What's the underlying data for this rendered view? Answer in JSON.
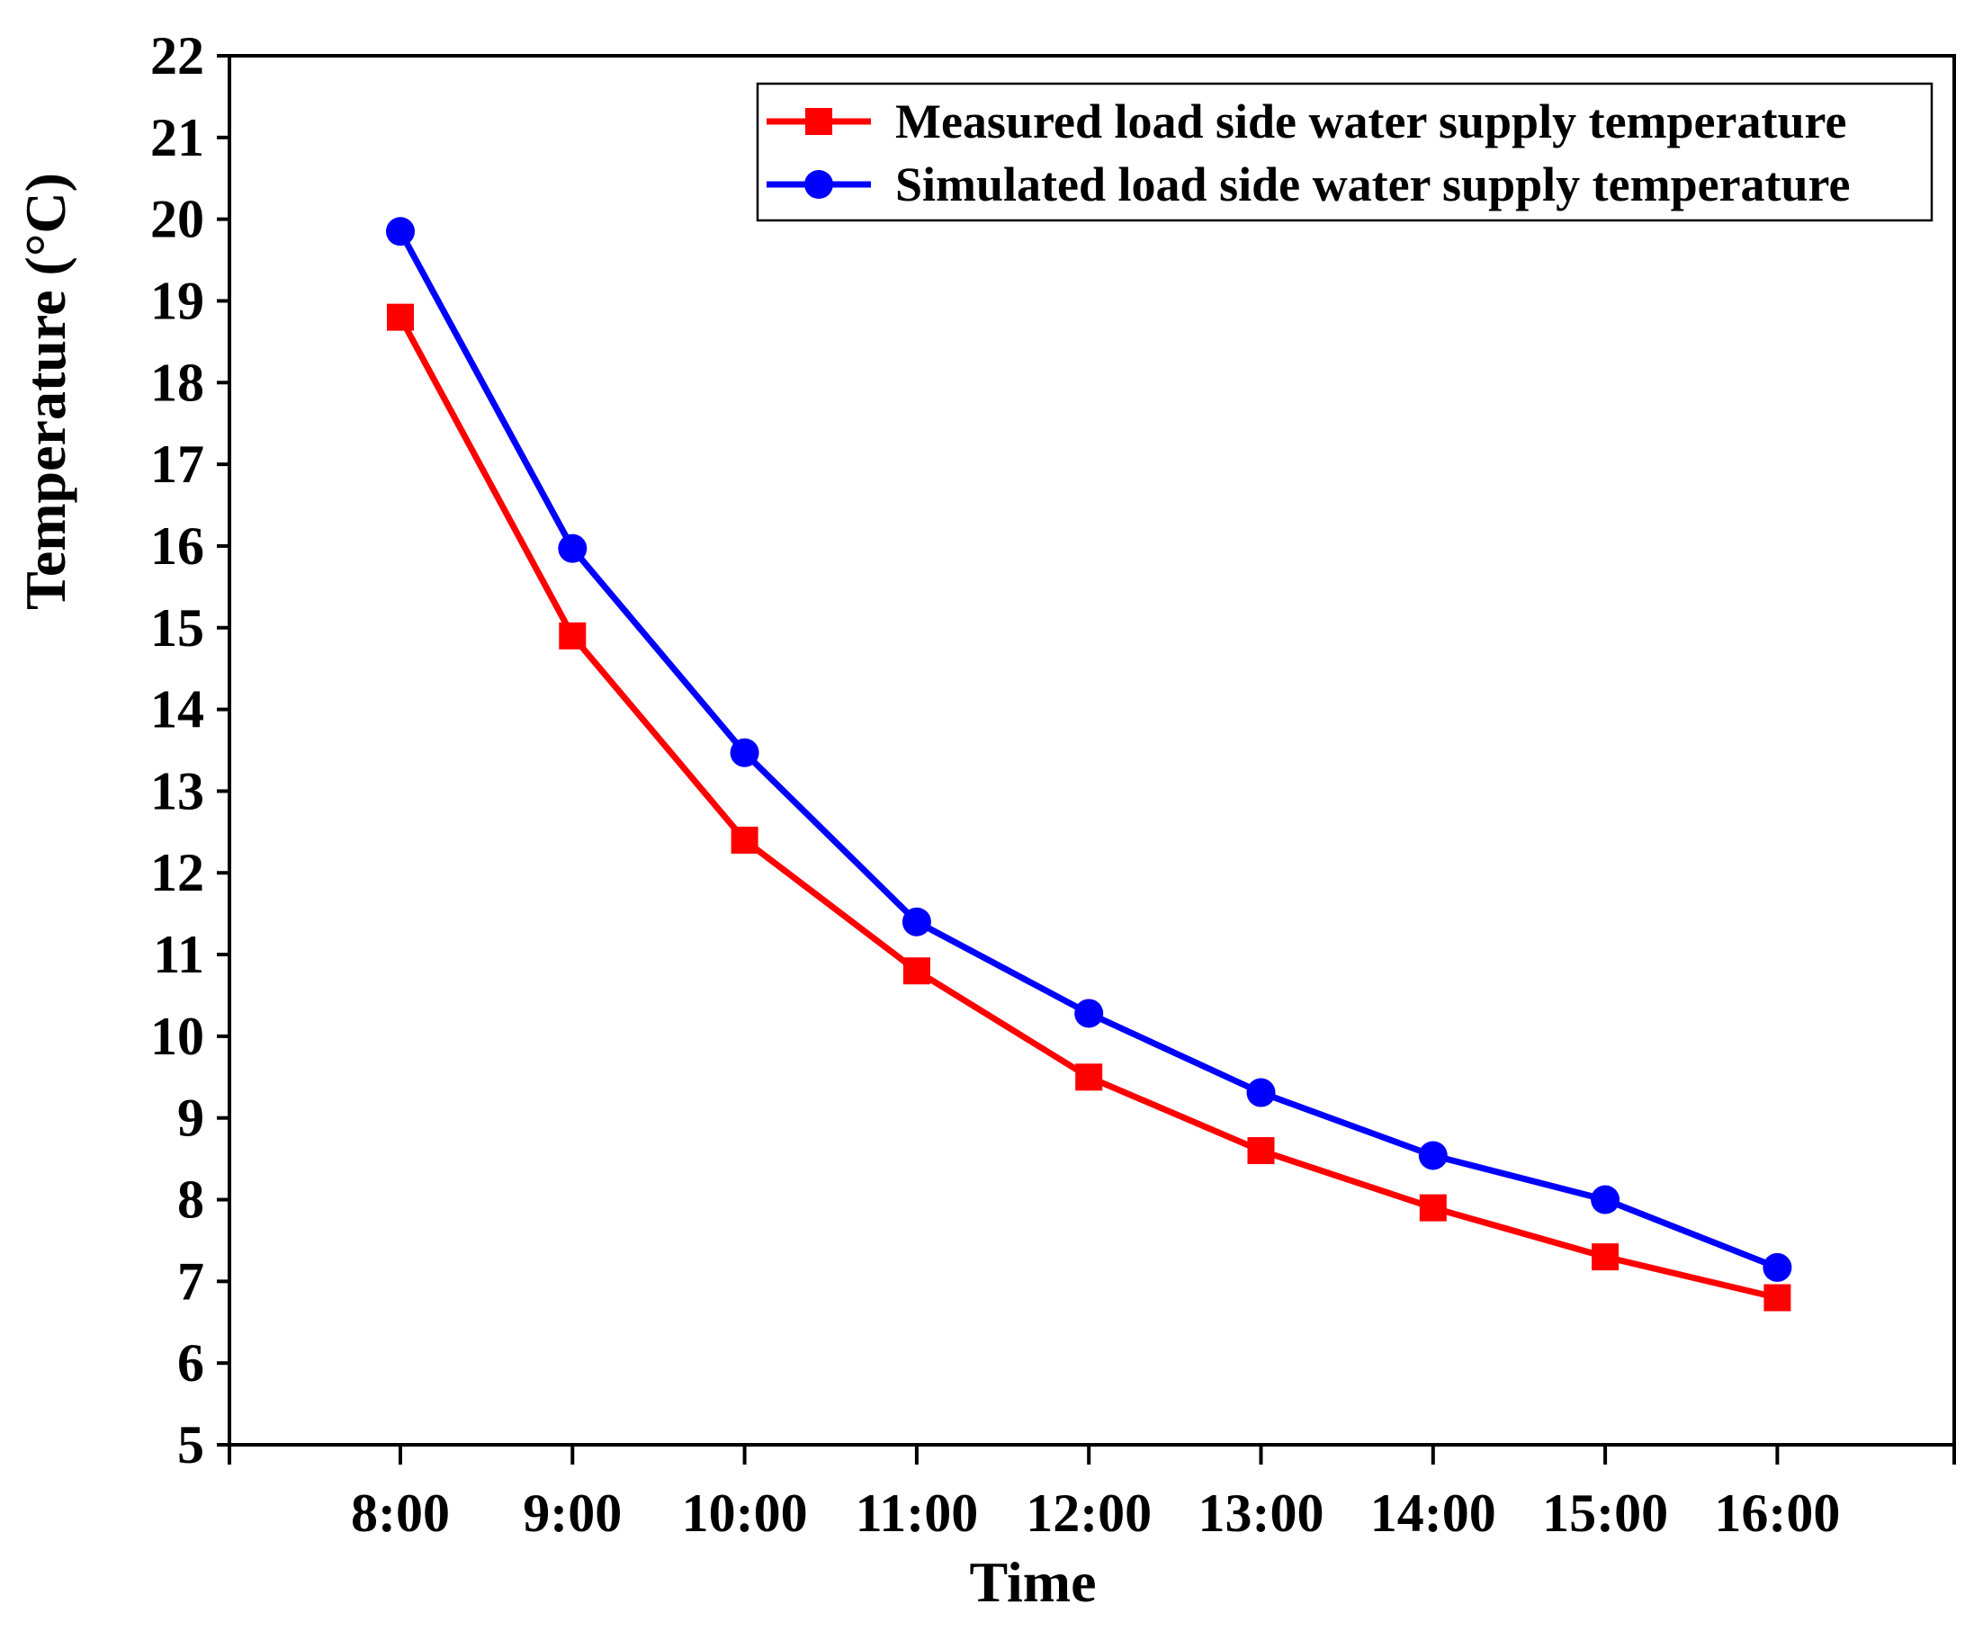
{
  "chart_data": {
    "type": "line",
    "title": "",
    "xlabel": "Time",
    "ylabel": "Temperature (°C)",
    "categories": [
      "8:00",
      "9:00",
      "10:00",
      "11:00",
      "12:00",
      "13:00",
      "14:00",
      "15:00",
      "16:00"
    ],
    "ylim": [
      5,
      22
    ],
    "yticks": [
      "5",
      "6",
      "7",
      "8",
      "9",
      "10",
      "11",
      "12",
      "13",
      "14",
      "15",
      "16",
      "17",
      "18",
      "19",
      "20",
      "21",
      "22"
    ],
    "grid": false,
    "legend_position": "top-right",
    "series": [
      {
        "name": "Measured load side water supply temperature",
        "marker": "square",
        "color": "#ff0000",
        "values": [
          18.8,
          14.9,
          12.4,
          10.8,
          9.5,
          8.6,
          7.9,
          7.3,
          6.8
        ]
      },
      {
        "name": "Simulated load side water supply temperature",
        "marker": "circle",
        "color": "#0000ff",
        "values": [
          19.85,
          15.97,
          13.47,
          11.4,
          10.28,
          9.31,
          8.54,
          8.0,
          7.17
        ]
      }
    ]
  }
}
